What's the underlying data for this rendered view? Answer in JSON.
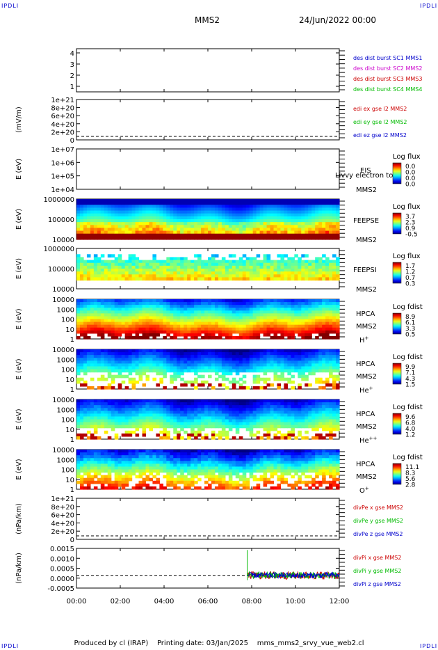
{
  "header": {
    "corner_left": "IPDLI",
    "corner_right": "IPDLI",
    "corner_bottom_left": "IPDLI",
    "corner_bottom_right": "IPDLI",
    "title": "MMS2",
    "date": "24/Jun/2022 00:00"
  },
  "footer": {
    "produced_by": "Produced by cl (IRAP)",
    "printing_date": "Printing date: 03/Jan/2025",
    "filename": "mms_mms2_srvy_vue_web2.cl"
  },
  "chart_data": {
    "type": "multi-panel time series",
    "x_ticks": [
      "00:00",
      "02:00",
      "04:00",
      "06:00",
      "08:00",
      "10:00",
      "12:00"
    ],
    "x_range_hours": [
      0,
      12
    ],
    "panels": [
      {
        "id": "burst",
        "type": "line",
        "yticks": [
          "4",
          "3",
          "2",
          "1"
        ],
        "ylabel": "",
        "legend": [
          {
            "text": "des dist burst SC1 MMS1",
            "color": "#0000cc"
          },
          {
            "text": "des dist burst SC2 MMS2",
            "color": "#cc00cc"
          },
          {
            "text": "des dist burst SC3 MMS3",
            "color": "#cc0000"
          },
          {
            "text": "des dist burst SC4 MMS4",
            "color": "#00bb00"
          }
        ]
      },
      {
        "id": "edi",
        "type": "line",
        "ylabel": "(mV/m)",
        "yticks": [
          "1e+21",
          "8e+20",
          "6e+20",
          "4e+20",
          "2e+20",
          "0"
        ],
        "legend": [
          {
            "text": "edi ex gse l2 MMS2",
            "color": "#cc0000"
          },
          {
            "text": "edi ey gse l2 MMS2",
            "color": "#00bb00"
          },
          {
            "text": "edi ez gse l2 MMS2",
            "color": "#0000cc"
          }
        ]
      },
      {
        "id": "eis",
        "type": "heatmap",
        "ylabel": "E (eV)",
        "yticks": [
          "1e+07",
          "1e+06",
          "1e+05",
          "1e+04"
        ],
        "instrument": "EIS",
        "overlay_text": "Livvy electron to",
        "spacecraft": "MMS2",
        "colorbar_title": "Log flux",
        "colorbar_values": [
          "0.0",
          "0.0",
          "0.0",
          "0.0"
        ]
      },
      {
        "id": "feepse",
        "type": "heatmap",
        "ylabel": "E (eV)",
        "yticks": [
          "1000000",
          "100000",
          "10000"
        ],
        "instrument": "FEEPSE",
        "spacecraft": "MMS2",
        "colorbar_title": "Log flux",
        "colorbar_values": [
          "3.7",
          "2.3",
          "0.9",
          "-0.5"
        ]
      },
      {
        "id": "feepsi",
        "type": "heatmap",
        "ylabel": "E (eV)",
        "yticks": [
          "1000000",
          "100000",
          "10000"
        ],
        "instrument": "FEEPSI",
        "spacecraft": "MMS2",
        "colorbar_title": "Log flux",
        "colorbar_values": [
          "1.7",
          "1.2",
          "0.7",
          "0.3"
        ]
      },
      {
        "id": "hpca_h",
        "type": "heatmap",
        "ylabel": "E (eV)",
        "yticks": [
          "10000",
          "1000",
          "100",
          "10",
          "1"
        ],
        "instrument": "HPCA",
        "spacecraft": "MMS2",
        "species": "H",
        "species_sup": "+",
        "colorbar_title": "Log fdist",
        "colorbar_values": [
          "8.9",
          "6.1",
          "3.3",
          "0.5"
        ]
      },
      {
        "id": "hpca_he",
        "type": "heatmap",
        "ylabel": "E (eV)",
        "yticks": [
          "10000",
          "1000",
          "100",
          "10",
          "1"
        ],
        "instrument": "HPCA",
        "spacecraft": "MMS2",
        "species": "He",
        "species_sup": "+",
        "colorbar_title": "Log fdist",
        "colorbar_values": [
          "9.9",
          "7.1",
          "4.3",
          "1.5"
        ]
      },
      {
        "id": "hpca_hepp",
        "type": "heatmap",
        "ylabel": "E (eV)",
        "yticks": [
          "10000",
          "1000",
          "100",
          "10",
          "1"
        ],
        "instrument": "HPCA",
        "spacecraft": "MMS2",
        "species": "He",
        "species_sup": "++",
        "colorbar_title": "Log fdist",
        "colorbar_values": [
          "9.6",
          "6.8",
          "4.0",
          "1.2"
        ]
      },
      {
        "id": "hpca_o",
        "type": "heatmap",
        "ylabel": "E (eV)",
        "yticks": [
          "10000",
          "1000",
          "100",
          "10",
          "1"
        ],
        "instrument": "HPCA",
        "spacecraft": "MMS2",
        "species": "O",
        "species_sup": "+",
        "colorbar_title": "Log fdist",
        "colorbar_values": [
          "11.1",
          "8.3",
          "5.6",
          "2.8"
        ]
      },
      {
        "id": "divpe",
        "type": "line",
        "ylabel": "(nPa/km)",
        "yticks": [
          "1e+21",
          "8e+20",
          "6e+20",
          "4e+20",
          "2e+20",
          "0"
        ],
        "legend": [
          {
            "text": "divPe x gse MMS2",
            "color": "#cc0000"
          },
          {
            "text": "divPe y gse MMS2",
            "color": "#00bb00"
          },
          {
            "text": "divPe z gse MMS2",
            "color": "#0000cc"
          }
        ]
      },
      {
        "id": "divpi",
        "type": "line",
        "ylabel": "(nPa/km)",
        "yticks": [
          "0.0015",
          "0.0010",
          "0.0005",
          "0.0000",
          "-0.0005"
        ],
        "ylim": [
          -0.0008,
          0.0017
        ],
        "data_start_hour": 7.8,
        "legend": [
          {
            "text": "divPi x gse MMS2",
            "color": "#cc0000"
          },
          {
            "text": "divPi y gse MMS2",
            "color": "#00bb00"
          },
          {
            "text": "divPi z gse MMS2",
            "color": "#0000cc"
          }
        ]
      }
    ]
  }
}
